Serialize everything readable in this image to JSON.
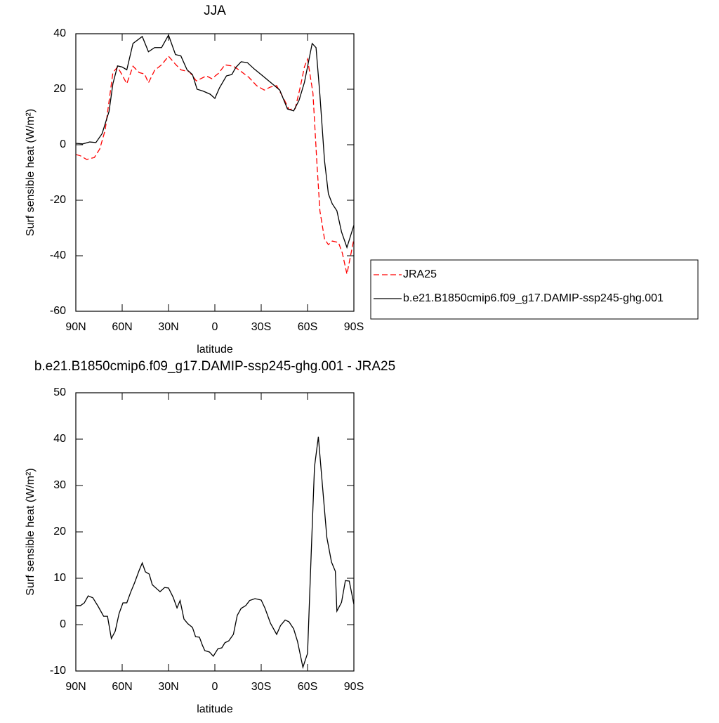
{
  "chart_data": [
    {
      "type": "line",
      "title": "JJA",
      "xlabel": "latitude",
      "ylabel": "Surf sensible heat (W/m²)",
      "xlim": [
        90,
        -90
      ],
      "xticks": [
        {
          "value": 90,
          "label": "90N"
        },
        {
          "value": 60,
          "label": "60N"
        },
        {
          "value": 30,
          "label": "30N"
        },
        0,
        {
          "value": -30,
          "label": "30S"
        },
        {
          "value": -60,
          "label": "60S"
        },
        {
          "value": -90,
          "label": "90S"
        }
      ],
      "ylim": [
        -60,
        40
      ],
      "yticks": [
        -60,
        -40,
        -20,
        0,
        20,
        40
      ],
      "legend": "right",
      "series": [
        {
          "name": "JRA25",
          "color": "#ff0000",
          "dash": true,
          "x": [
            90,
            87,
            83,
            78,
            74.5,
            71,
            66,
            63,
            60.5,
            57,
            53,
            49,
            45.5,
            43,
            39,
            34.5,
            30,
            25.5,
            22,
            16.5,
            12,
            5.5,
            2,
            -2.5,
            -6.5,
            -12,
            -16,
            -22,
            -27,
            -32,
            -36,
            -40,
            -44.5,
            -48,
            -52,
            -55.5,
            -58,
            -60,
            -63.5,
            -66,
            -68,
            -71,
            -73.5,
            -76,
            -80,
            -82.5,
            -85.5,
            -90
          ],
          "values": [
            -3.5,
            -4,
            -5.3,
            -4.6,
            -1.5,
            5.3,
            26,
            28,
            25.6,
            22,
            28.3,
            26,
            25.5,
            22.3,
            26.8,
            28.8,
            31.9,
            29,
            27,
            26.3,
            23,
            24.8,
            23.8,
            25.8,
            28.8,
            28.3,
            26.8,
            24.3,
            21.3,
            19.7,
            20.8,
            21.3,
            16.7,
            12.7,
            13,
            21.3,
            28.1,
            30.9,
            18.6,
            -6,
            -23.8,
            -34,
            -36,
            -34.7,
            -35.2,
            -39,
            -46.6,
            -34
          ]
        },
        {
          "name": "b.e21.B1850cmip6.f09_g17.DAMIP-ssp245-ghg.001",
          "color": "#000000",
          "dash": false,
          "x": [
            90,
            85.5,
            81,
            77,
            73,
            68.5,
            66,
            63,
            60,
            57,
            53,
            47,
            43,
            39,
            34.5,
            30,
            25.5,
            22,
            18,
            14.5,
            11.5,
            7.5,
            3,
            0,
            -3,
            -7.5,
            -11,
            -13.5,
            -17,
            -21,
            -25.5,
            -31,
            -36,
            -42,
            -47,
            -51,
            -54.5,
            -58,
            -63,
            -65.5,
            -68,
            -71,
            -73.5,
            -76,
            -79,
            -82,
            -85.5,
            -90
          ],
          "values": [
            0.5,
            0.3,
            1,
            0.8,
            4,
            12,
            22,
            28.4,
            28,
            27,
            36.5,
            39,
            33.5,
            35,
            35,
            39.5,
            32.5,
            32,
            27,
            25.3,
            20,
            19.3,
            18.2,
            16.7,
            20.5,
            24.8,
            25.3,
            27.8,
            29.9,
            29.6,
            27.3,
            24.8,
            22.5,
            19.7,
            12.9,
            12.2,
            16,
            22.5,
            36.5,
            35,
            18,
            -5.8,
            -17.7,
            -21.3,
            -23.8,
            -31.4,
            -37,
            -29
          ]
        }
      ]
    },
    {
      "type": "line",
      "title": "b.e21.B1850cmip6.f09_g17.DAMIP-ssp245-ghg.001 - JRA25",
      "xlabel": "latitude",
      "ylabel": "Surf sensible heat (W/m²)",
      "xlim": [
        90,
        -90
      ],
      "xticks": [
        {
          "value": 90,
          "label": "90N"
        },
        {
          "value": 60,
          "label": "60N"
        },
        {
          "value": 30,
          "label": "30N"
        },
        0,
        {
          "value": -30,
          "label": "30S"
        },
        {
          "value": -60,
          "label": "60S"
        },
        {
          "value": -90,
          "label": "90S"
        }
      ],
      "ylim": [
        -10,
        50
      ],
      "yticks": [
        -10,
        0,
        10,
        20,
        30,
        40,
        50
      ],
      "series": [
        {
          "color": "#000000",
          "dash": false,
          "x": [
            90,
            87,
            84.5,
            82,
            79,
            75.5,
            72,
            69.5,
            67,
            64.5,
            62,
            59.5,
            57,
            54.5,
            52,
            49,
            47,
            45,
            42.5,
            40.5,
            37.5,
            35.5,
            32.5,
            30,
            27,
            24.5,
            22.5,
            20,
            17.5,
            14.5,
            12.5,
            10,
            8,
            6.5,
            3.5,
            1,
            -2,
            -4.5,
            -6.5,
            -9,
            -12,
            -14.5,
            -17,
            -20,
            -22.5,
            -26,
            -30,
            -32.5,
            -36,
            -40,
            -42.5,
            -45.5,
            -48,
            -51,
            -53.5,
            -57,
            -60,
            -62.5,
            -64.5,
            -67,
            -70,
            -72.5,
            -75.5,
            -78,
            -79,
            -82,
            -84.5,
            -87,
            -90
          ],
          "values": [
            4.1,
            4.1,
            4.7,
            6.2,
            5.8,
            3.9,
            1.8,
            1.8,
            -3,
            -1.4,
            2.4,
            4.7,
            4.7,
            7,
            9,
            11.7,
            13.3,
            11.4,
            10.9,
            8.6,
            7.7,
            7.1,
            8,
            7.9,
            5.9,
            3.6,
            5.2,
            1.2,
            0.2,
            -0.6,
            -2.6,
            -2.7,
            -4.5,
            -5.6,
            -5.9,
            -6.8,
            -5.2,
            -5,
            -3.9,
            -3.5,
            -2.1,
            2,
            3.5,
            4.1,
            5.2,
            5.6,
            5.3,
            3.5,
            0.3,
            -2.1,
            -0.2,
            1,
            0.6,
            -0.9,
            -3.6,
            -9.2,
            -6.2,
            16.5,
            34,
            40.5,
            28.6,
            18.8,
            13.5,
            11.5,
            2.9,
            4.8,
            9.5,
            9.4,
            4.4
          ]
        }
      ]
    }
  ]
}
